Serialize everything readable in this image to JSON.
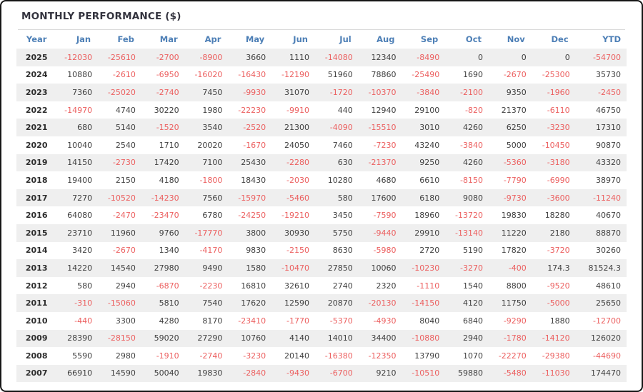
{
  "title": "MONTHLY PERFORMANCE ($)",
  "colors": {
    "negative_value": "#ec5f5f",
    "positive_value": "#3f3f3f",
    "column_header": "#4d7fb6",
    "title_text": "#33333e",
    "row_stripe": "#efefef",
    "divider": "#d9d9d9"
  },
  "chart_data": {
    "type": "table",
    "title": "MONTHLY PERFORMANCE ($)",
    "columns": [
      "Year",
      "Jan",
      "Feb",
      "Mar",
      "Apr",
      "May",
      "Jun",
      "Jul",
      "Aug",
      "Sep",
      "Oct",
      "Nov",
      "Dec",
      "YTD"
    ],
    "rows": [
      [
        "2025",
        "-12030",
        "-25610",
        "-2700",
        "-8900",
        "3660",
        "1110",
        "-14080",
        "12340",
        "-8490",
        "0",
        "0",
        "0",
        "-54700"
      ],
      [
        "2024",
        "10880",
        "-2610",
        "-6950",
        "-16020",
        "-16430",
        "-12190",
        "51960",
        "78860",
        "-25490",
        "1690",
        "-2670",
        "-25300",
        "35730"
      ],
      [
        "2023",
        "7360",
        "-25020",
        "-2740",
        "7450",
        "-9930",
        "31070",
        "-1720",
        "-10370",
        "-3840",
        "-2100",
        "9350",
        "-1960",
        "-2450"
      ],
      [
        "2022",
        "-14970",
        "4740",
        "30220",
        "1980",
        "-22230",
        "-9910",
        "440",
        "12940",
        "29100",
        "-820",
        "21370",
        "-6110",
        "46750"
      ],
      [
        "2021",
        "680",
        "5140",
        "-1520",
        "3540",
        "-2520",
        "21300",
        "-4090",
        "-15510",
        "3010",
        "4260",
        "6250",
        "-3230",
        "17310"
      ],
      [
        "2020",
        "10040",
        "2540",
        "1710",
        "20020",
        "-1670",
        "24050",
        "7460",
        "-7230",
        "43240",
        "-3840",
        "5000",
        "-10450",
        "90870"
      ],
      [
        "2019",
        "14150",
        "-2730",
        "17420",
        "7100",
        "25430",
        "-2280",
        "630",
        "-21370",
        "9250",
        "4260",
        "-5360",
        "-3180",
        "43320"
      ],
      [
        "2018",
        "19400",
        "2150",
        "4180",
        "-1800",
        "18430",
        "-2030",
        "10280",
        "4680",
        "6610",
        "-8150",
        "-7790",
        "-6990",
        "38970"
      ],
      [
        "2017",
        "7270",
        "-10520",
        "-14230",
        "7560",
        "-15970",
        "-5460",
        "580",
        "17600",
        "6180",
        "9080",
        "-9730",
        "-3600",
        "-11240"
      ],
      [
        "2016",
        "64080",
        "-2470",
        "-23470",
        "6780",
        "-24250",
        "-19210",
        "3450",
        "-7590",
        "18960",
        "-13720",
        "19830",
        "18280",
        "40670"
      ],
      [
        "2015",
        "23710",
        "11960",
        "9760",
        "-17770",
        "3800",
        "30930",
        "5750",
        "-9440",
        "29910",
        "-13140",
        "11220",
        "2180",
        "88870"
      ],
      [
        "2014",
        "3420",
        "-2670",
        "1340",
        "-4170",
        "9830",
        "-2150",
        "8630",
        "-5980",
        "2720",
        "5190",
        "17820",
        "-3720",
        "30260"
      ],
      [
        "2013",
        "14220",
        "14540",
        "27980",
        "9490",
        "1580",
        "-10470",
        "27850",
        "10060",
        "-10230",
        "-3270",
        "-400",
        "174.3",
        "81524.3"
      ],
      [
        "2012",
        "580",
        "2940",
        "-6870",
        "-2230",
        "16810",
        "32610",
        "2740",
        "2320",
        "-1110",
        "1540",
        "8800",
        "-9520",
        "48610"
      ],
      [
        "2011",
        "-310",
        "-15060",
        "5810",
        "7540",
        "17620",
        "12590",
        "20870",
        "-20130",
        "-14150",
        "4120",
        "11750",
        "-5000",
        "25650"
      ],
      [
        "2010",
        "-440",
        "3300",
        "4280",
        "8170",
        "-23410",
        "-1770",
        "-5370",
        "-4930",
        "8040",
        "6840",
        "-9290",
        "1880",
        "-12700"
      ],
      [
        "2009",
        "28390",
        "-28150",
        "59020",
        "27290",
        "10760",
        "4140",
        "14010",
        "34400",
        "-10880",
        "2940",
        "-1780",
        "-14120",
        "126020"
      ],
      [
        "2008",
        "5590",
        "2980",
        "-1910",
        "-2740",
        "-3230",
        "20140",
        "-16380",
        "-12350",
        "13790",
        "1070",
        "-22270",
        "-29380",
        "-44690"
      ],
      [
        "2007",
        "66910",
        "14590",
        "50040",
        "19830",
        "-2840",
        "-9430",
        "-6700",
        "9210",
        "-10510",
        "59880",
        "-5480",
        "-11030",
        "174470"
      ]
    ]
  }
}
